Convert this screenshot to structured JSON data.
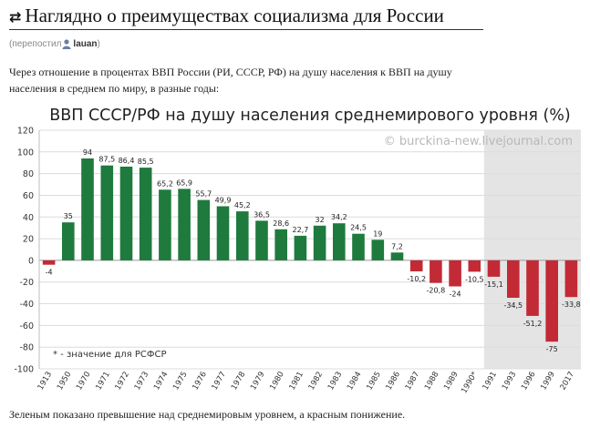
{
  "post": {
    "repost_icon": "repost-arrows-icon",
    "title": "Наглядно о преимуществах социализма для России",
    "meta_prefix": "(перепостил",
    "meta_user": "lauan",
    "meta_suffix": ")",
    "intro_line1": "Через отношение в процентах ВВП России (РИ, СССР, РФ) на душу населения к ВВП на душу",
    "intro_line2": "населения в среднем по миру, в разные годы:",
    "footer": "Зеленым показано превышение над среднемировым уровнем, а красным понижение."
  },
  "colors": {
    "positive": "#1f7a3e",
    "negative": "#c22a36",
    "shade": "#e4e4e4"
  },
  "chart_data": {
    "type": "bar",
    "title": "ВВП СССР/РФ на душу населения среднемирового уровня (%)",
    "watermark": "© burckina-new.livejournal.com",
    "note": "* - значение для РСФСР",
    "categories": [
      "1913",
      "1950",
      "1970",
      "1971",
      "1972",
      "1973",
      "1974",
      "1975",
      "1976",
      "1977",
      "1978",
      "1979",
      "1980",
      "1981",
      "1982",
      "1983",
      "1984",
      "1985",
      "1986",
      "1987",
      "1988",
      "1989",
      "1990*",
      "1991",
      "1993",
      "1996",
      "1999",
      "2017"
    ],
    "values": [
      -4,
      35,
      94,
      87.5,
      86.4,
      85.5,
      65.2,
      65.9,
      55.7,
      49.9,
      45.2,
      36.5,
      28.6,
      22.7,
      32,
      34.2,
      24.5,
      19,
      7.2,
      -10.2,
      -20.8,
      -24,
      -10.5,
      -15.1,
      -34.5,
      -51.2,
      -75,
      -33.8
    ],
    "labels": [
      "-4",
      "35",
      "94",
      "87,5",
      "86,4",
      "85,5",
      "65,2",
      "65,9",
      "55,7",
      "49,9",
      "45,2",
      "36,5",
      "28,6",
      "22,7",
      "32",
      "34,2",
      "24,5",
      "19",
      "7,2",
      "-10,2",
      "-20,8",
      "-24",
      "-10,5",
      "-15,1",
      "-34,5",
      "-51,2",
      "-75",
      "-33,8"
    ],
    "y_ticks": [
      "120",
      "100",
      "80",
      "60",
      "40",
      "20",
      "0",
      "-20",
      "-40",
      "-60",
      "-80",
      "-100"
    ],
    "ylim": [
      -100,
      120
    ],
    "shaded_from_category": "1991",
    "grid": true,
    "legend": "none"
  }
}
